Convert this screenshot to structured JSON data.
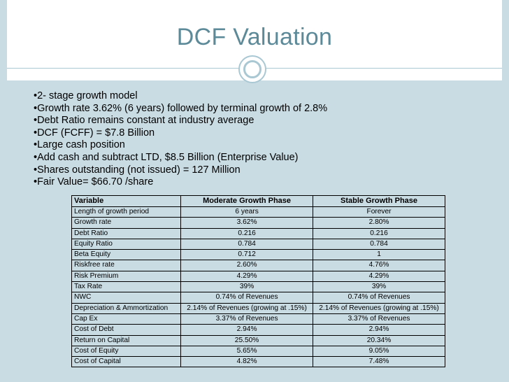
{
  "slide": {
    "title": "DCF Valuation",
    "bullets": [
      "2- stage growth model",
      "Growth rate 3.62% (6 years) followed by terminal growth of 2.8%",
      "Debt Ratio remains constant at industry average",
      "DCF (FCFF) = $7.8 Billion",
      "Large cash position",
      "Add cash and subtract LTD, $8.5 Billion (Enterprise Value)",
      "Shares outstanding (not issued) = 127 Million",
      "Fair Value= $66.70 /share"
    ]
  },
  "table": {
    "headers": [
      "Variable",
      "Moderate Growth Phase",
      "Stable Growth Phase"
    ],
    "rows": [
      [
        "Length of growth period",
        "6 years",
        "Forever"
      ],
      [
        "Growth rate",
        "3.62%",
        "2.80%"
      ],
      [
        "Debt Ratio",
        "0.216",
        "0.216"
      ],
      [
        "Equity Ratio",
        "0.784",
        "0.784"
      ],
      [
        "Beta Equity",
        "0.712",
        "1"
      ],
      [
        "Riskfree rate",
        "2.60%",
        "4.76%"
      ],
      [
        "Risk Premium",
        "4.29%",
        "4.29%"
      ],
      [
        "Tax Rate",
        "39%",
        "39%"
      ],
      [
        "NWC",
        "0.74% of Revenues",
        "0.74% of Revenues"
      ],
      [
        "Depreciation & Ammortization",
        "2.14% of Revenues (growing at .15%)",
        "2.14% of Revenues (growing at .15%)"
      ],
      [
        "Cap Ex",
        "3.37% of Revenues",
        "3.37% of Revenues"
      ],
      [
        "Cost of Debt",
        "2.94%",
        "2.94%"
      ],
      [
        "Return on Capital",
        "25.50%",
        "20.34%"
      ],
      [
        "Cost of Equity",
        "5.65%",
        "9.05%"
      ],
      [
        "Cost of Capital",
        "4.82%",
        "7.48%"
      ]
    ]
  },
  "colors": {
    "title": "#5d8a99",
    "band": "#c9dce3",
    "accent_line": "#a9c8d3"
  }
}
